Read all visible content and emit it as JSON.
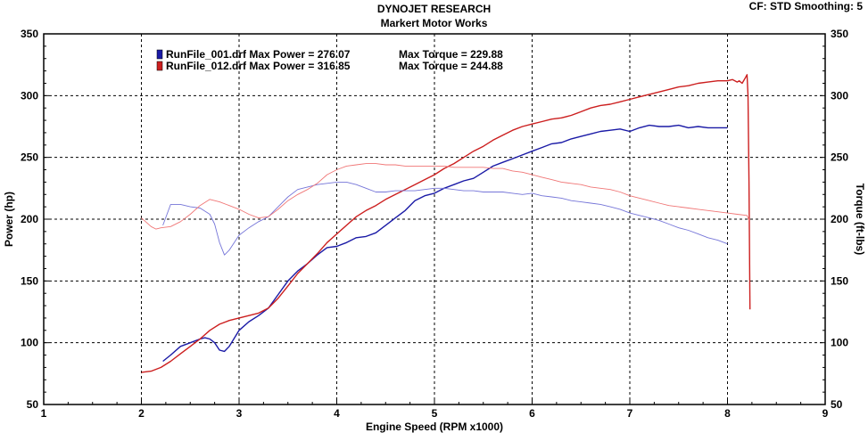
{
  "header": {
    "title": "DYNOJET RESEARCH",
    "subtitle": "Markert Motor Works",
    "cf_smoothing": "CF: STD  Smoothing: 5"
  },
  "chart_data": {
    "type": "line",
    "title": "DYNOJET RESEARCH",
    "subtitle": "Markert Motor Works",
    "xlabel": "Engine Speed (RPM x1000)",
    "ylabel_left": "Power (hp)",
    "ylabel_right": "Torque (ft-lbs)",
    "xlim": [
      1,
      9
    ],
    "ylim": [
      50,
      350
    ],
    "xticks": [
      "1",
      "2",
      "3",
      "4",
      "5",
      "6",
      "7",
      "8",
      "9"
    ],
    "yticks": [
      "50",
      "100",
      "150",
      "200",
      "250",
      "300",
      "350"
    ],
    "grid": true,
    "legend_position": "top-left",
    "legend": [
      {
        "file": "RunFile_001.drf",
        "power_text": "Max Power = 276.07",
        "torque_text": "Max Torque = 229.88",
        "color": "#1a1aa6"
      },
      {
        "file": "RunFile_012.drf",
        "power_text": "Max Power = 316.85",
        "torque_text": "Max Torque = 244.88",
        "color": "#cc1f1f"
      }
    ],
    "series": [
      {
        "name": "RunFile_001.drf Power",
        "color": "#1a1aa6",
        "width": 1.4,
        "x": [
          2.22,
          2.3,
          2.4,
          2.5,
          2.6,
          2.65,
          2.7,
          2.75,
          2.8,
          2.85,
          2.9,
          3.0,
          3.1,
          3.2,
          3.3,
          3.4,
          3.5,
          3.6,
          3.7,
          3.8,
          3.9,
          4.0,
          4.1,
          4.2,
          4.3,
          4.4,
          4.5,
          4.6,
          4.7,
          4.8,
          4.9,
          5.0,
          5.1,
          5.2,
          5.3,
          5.4,
          5.5,
          5.6,
          5.7,
          5.8,
          5.9,
          6.0,
          6.1,
          6.2,
          6.3,
          6.4,
          6.5,
          6.6,
          6.7,
          6.8,
          6.9,
          7.0,
          7.1,
          7.2,
          7.3,
          7.4,
          7.5,
          7.6,
          7.7,
          7.8,
          7.9,
          8.0
        ],
        "y": [
          85,
          90,
          97,
          100,
          103,
          104,
          103,
          100,
          94,
          93,
          97,
          110,
          117,
          122,
          128,
          139,
          150,
          158,
          164,
          171,
          177,
          178,
          181,
          185,
          186,
          189,
          195,
          201,
          207,
          215,
          219,
          221,
          225,
          228,
          231,
          233,
          238,
          243,
          246,
          249,
          252,
          255,
          258,
          261,
          262,
          265,
          267,
          269,
          271,
          272,
          273,
          271,
          274,
          276,
          275,
          275,
          276,
          274,
          275,
          274,
          274,
          274
        ]
      },
      {
        "name": "RunFile_012.drf Power",
        "color": "#cc1f1f",
        "width": 1.4,
        "x": [
          2.0,
          2.1,
          2.2,
          2.3,
          2.4,
          2.5,
          2.6,
          2.7,
          2.8,
          2.9,
          3.0,
          3.1,
          3.2,
          3.3,
          3.4,
          3.5,
          3.6,
          3.7,
          3.8,
          3.9,
          4.0,
          4.1,
          4.2,
          4.3,
          4.4,
          4.5,
          4.6,
          4.7,
          4.8,
          4.9,
          5.0,
          5.1,
          5.2,
          5.3,
          5.4,
          5.5,
          5.6,
          5.7,
          5.8,
          5.9,
          6.0,
          6.1,
          6.2,
          6.3,
          6.4,
          6.5,
          6.6,
          6.7,
          6.8,
          6.9,
          7.0,
          7.1,
          7.2,
          7.3,
          7.4,
          7.5,
          7.6,
          7.7,
          7.8,
          7.9,
          8.0,
          8.05,
          8.1,
          8.12,
          8.15,
          8.18,
          8.2,
          8.21,
          8.22,
          8.23
        ],
        "y": [
          76,
          77,
          80,
          85,
          91,
          97,
          103,
          110,
          115,
          118,
          120,
          122,
          124,
          128,
          136,
          146,
          156,
          164,
          172,
          181,
          188,
          195,
          202,
          207,
          211,
          216,
          220,
          224,
          228,
          232,
          236,
          241,
          245,
          250,
          255,
          259,
          264,
          268,
          272,
          275,
          277,
          279,
          281,
          282,
          284,
          287,
          290,
          292,
          293,
          295,
          297,
          299,
          301,
          303,
          305,
          307,
          308,
          310,
          311,
          312,
          312,
          313,
          311,
          312,
          310,
          314,
          317,
          300,
          230,
          127
        ]
      },
      {
        "name": "RunFile_001.drf Torque",
        "color": "#7575d8",
        "width": 0.9,
        "x": [
          2.22,
          2.3,
          2.4,
          2.5,
          2.6,
          2.7,
          2.75,
          2.8,
          2.85,
          2.9,
          3.0,
          3.1,
          3.2,
          3.3,
          3.4,
          3.5,
          3.6,
          3.7,
          3.8,
          3.9,
          4.0,
          4.1,
          4.2,
          4.3,
          4.4,
          4.5,
          4.6,
          4.7,
          4.8,
          4.9,
          5.0,
          5.1,
          5.2,
          5.3,
          5.4,
          5.5,
          5.6,
          5.7,
          5.8,
          5.9,
          6.0,
          6.1,
          6.2,
          6.3,
          6.4,
          6.5,
          6.6,
          6.7,
          6.8,
          6.9,
          7.0,
          7.1,
          7.2,
          7.3,
          7.4,
          7.5,
          7.6,
          7.7,
          7.8,
          7.9,
          8.0
        ],
        "y": [
          195,
          212,
          212,
          210,
          209,
          204,
          196,
          181,
          171,
          175,
          187,
          193,
          198,
          202,
          210,
          218,
          224,
          226,
          228,
          229,
          230,
          230,
          228,
          225,
          222,
          222,
          223,
          223,
          223,
          224,
          225,
          225,
          224,
          223,
          223,
          222,
          222,
          222,
          221,
          220,
          221,
          219,
          218,
          217,
          215,
          214,
          213,
          212,
          210,
          208,
          205,
          203,
          201,
          199,
          196,
          193,
          191,
          188,
          185,
          183,
          180
        ]
      },
      {
        "name": "RunFile_012.drf Torque",
        "color": "#f07676",
        "width": 0.9,
        "x": [
          2.0,
          2.1,
          2.15,
          2.2,
          2.3,
          2.4,
          2.5,
          2.6,
          2.7,
          2.8,
          2.9,
          3.0,
          3.1,
          3.2,
          3.3,
          3.4,
          3.5,
          3.6,
          3.7,
          3.8,
          3.9,
          4.0,
          4.1,
          4.2,
          4.3,
          4.4,
          4.5,
          4.6,
          4.7,
          4.8,
          4.9,
          5.0,
          5.1,
          5.2,
          5.3,
          5.4,
          5.5,
          5.6,
          5.7,
          5.8,
          5.9,
          6.0,
          6.1,
          6.2,
          6.3,
          6.4,
          6.5,
          6.6,
          6.7,
          6.8,
          6.9,
          7.0,
          7.1,
          7.2,
          7.3,
          7.4,
          7.5,
          7.6,
          7.7,
          7.8,
          7.9,
          8.0,
          8.1,
          8.2,
          8.22
        ],
        "y": [
          201,
          194,
          192,
          193,
          194,
          198,
          204,
          211,
          216,
          214,
          211,
          208,
          204,
          201,
          202,
          208,
          215,
          220,
          224,
          229,
          236,
          240,
          243,
          244,
          245,
          245,
          244,
          244,
          243,
          243,
          243,
          243,
          243,
          242,
          242,
          242,
          242,
          241,
          241,
          239,
          238,
          236,
          234,
          232,
          230,
          229,
          228,
          226,
          225,
          224,
          222,
          219,
          217,
          215,
          213,
          211,
          210,
          209,
          208,
          207,
          206,
          205,
          204,
          203,
          199
        ]
      }
    ]
  }
}
